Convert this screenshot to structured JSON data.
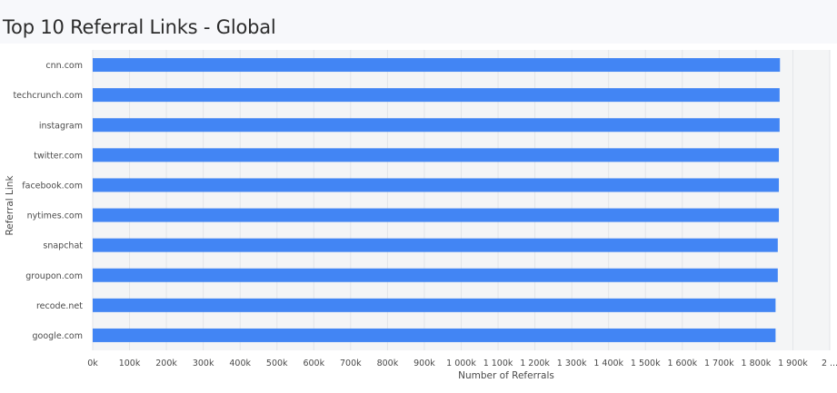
{
  "page": {
    "title": "Top 10 Referral Links - Global"
  },
  "chart_data": {
    "type": "bar",
    "orientation": "horizontal",
    "title": "Top 10 Referral Links - Global",
    "xlabel": "Number of Referrals",
    "ylabel": "Referral Link",
    "categories": [
      "cnn.com",
      "techcrunch.com",
      "instagram",
      "twitter.com",
      "facebook.com",
      "nytimes.com",
      "snapchat",
      "groupon.com",
      "recode.net",
      "google.com"
    ],
    "values": [
      1865000,
      1864000,
      1864000,
      1862000,
      1862000,
      1862000,
      1859000,
      1859000,
      1853000,
      1853000
    ],
    "xlim": [
      0,
      2000000
    ],
    "x_ticks": [
      "0k",
      "100k",
      "200k",
      "300k",
      "400k",
      "500k",
      "600k",
      "700k",
      "800k",
      "900k",
      "1 000k",
      "1 100k",
      "1 200k",
      "1 300k",
      "1 400k",
      "1 500k",
      "1 600k",
      "1 700k",
      "1 800k",
      "1 900k",
      "2 ..."
    ],
    "bar_color": "#4285f4",
    "grid": true
  }
}
